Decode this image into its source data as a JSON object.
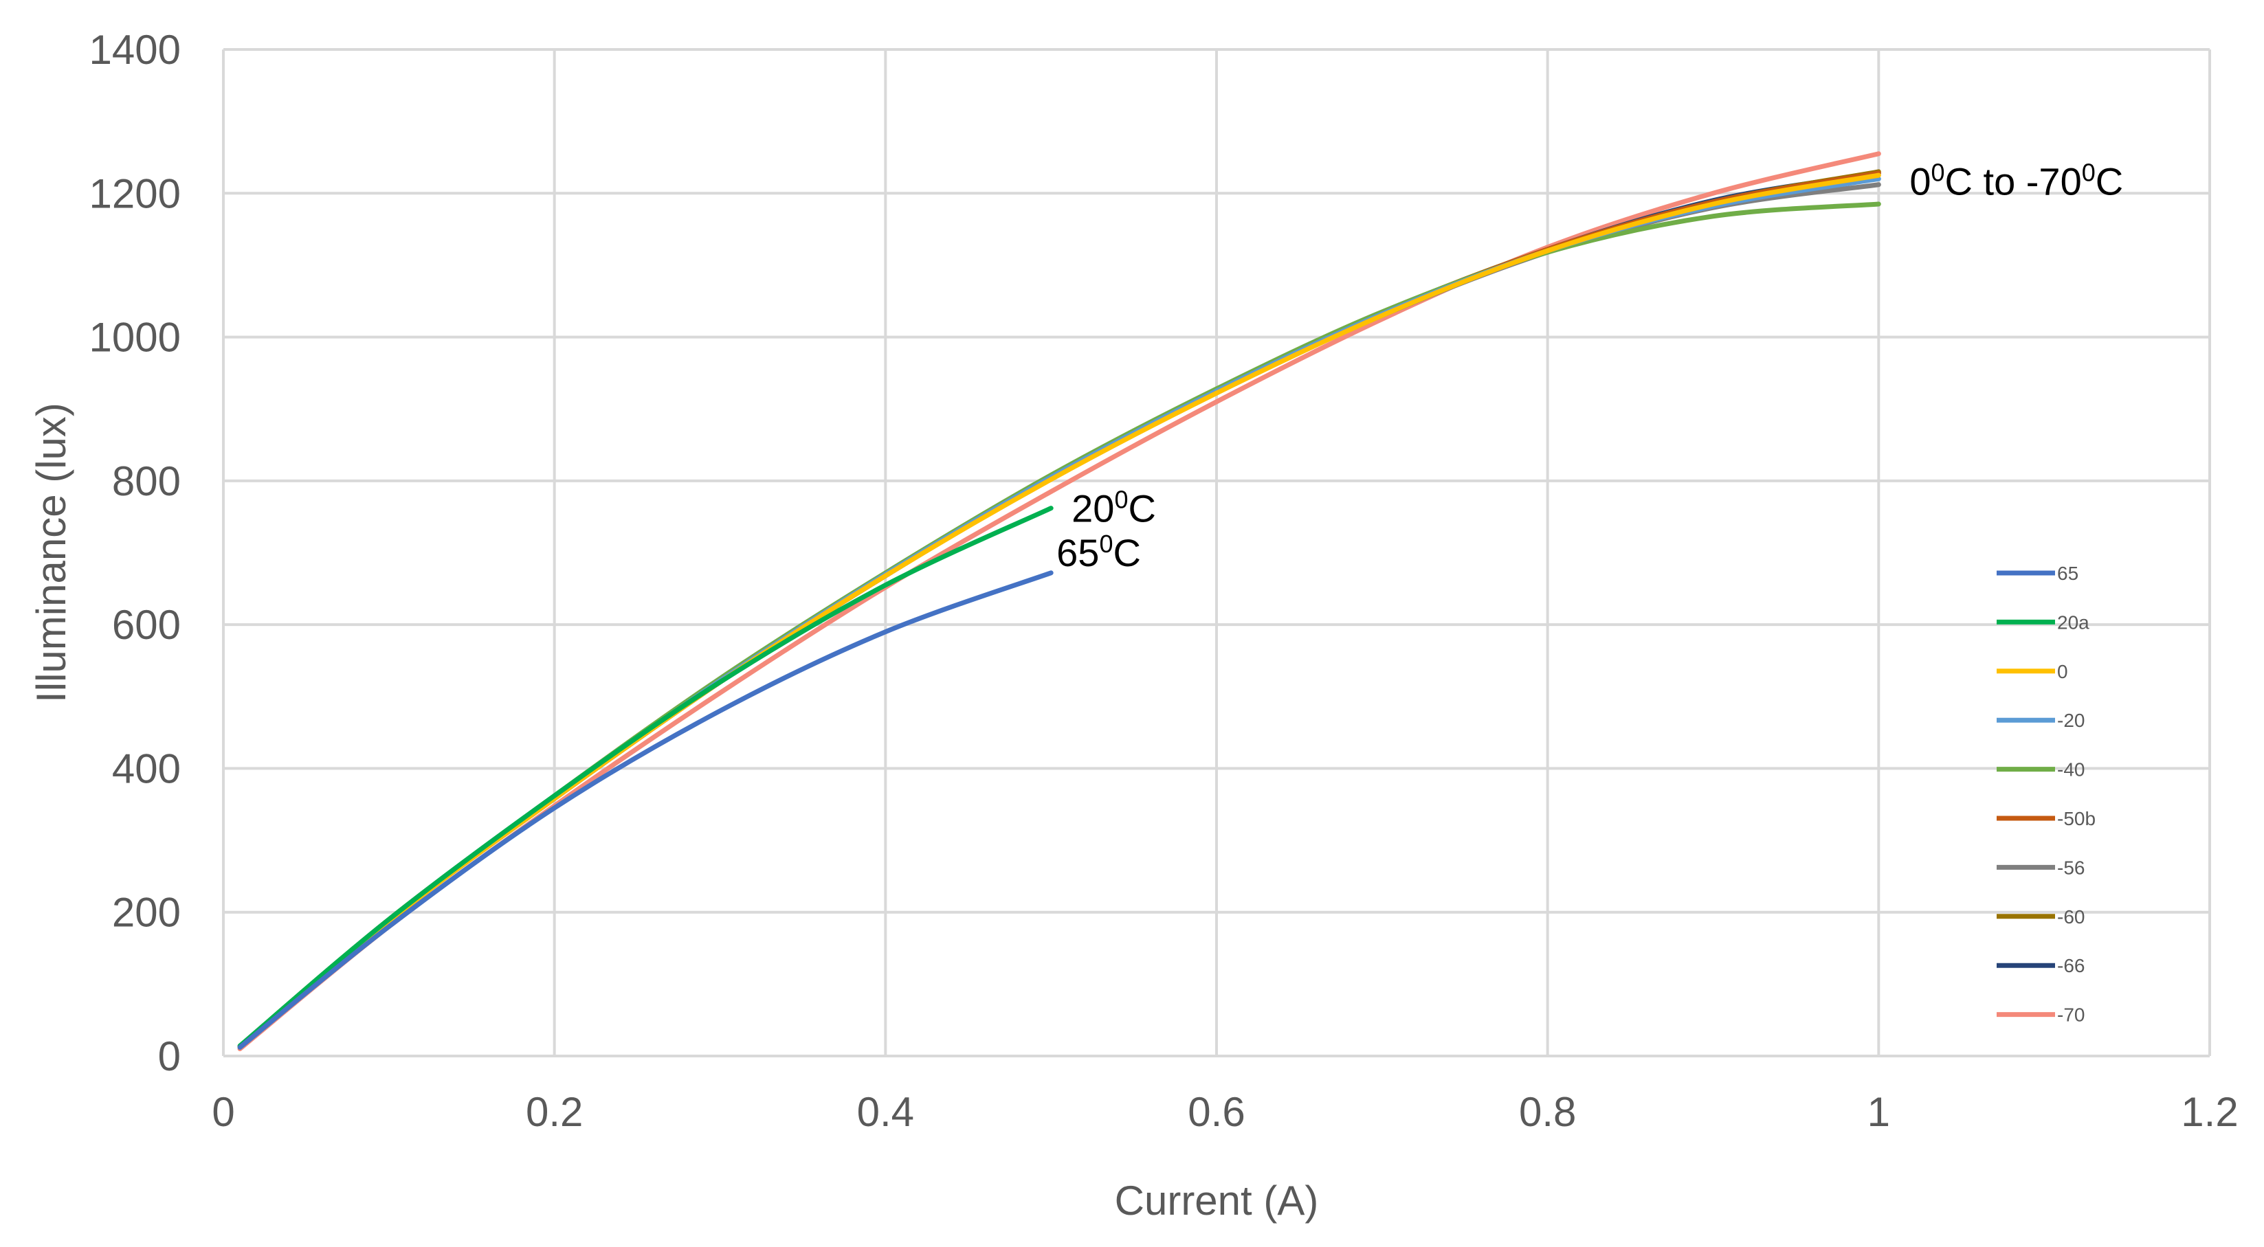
{
  "chart_data": {
    "type": "line",
    "title": "",
    "xlabel": "Current (A)",
    "ylabel": "Illuminance (lux)",
    "xlim": [
      0,
      1.2
    ],
    "ylim": [
      0,
      1400
    ],
    "x_ticks": [
      "0",
      "0.2",
      "0.4",
      "0.6",
      "0.8",
      "1",
      "1.2"
    ],
    "y_ticks": [
      "0",
      "200",
      "400",
      "600",
      "800",
      "1000",
      "1200",
      "1400"
    ],
    "grid": true,
    "legend_position": "right",
    "series": [
      {
        "name": "65",
        "color": "#4472c4",
        "x": [
          0.01,
          0.1,
          0.2,
          0.3,
          0.4,
          0.5
        ],
        "y": [
          12,
          180,
          345,
          480,
          590,
          672
        ]
      },
      {
        "name": "20a",
        "color": "#00b050",
        "x": [
          0.01,
          0.1,
          0.2,
          0.3,
          0.4,
          0.5
        ],
        "y": [
          14,
          190,
          362,
          520,
          655,
          762
        ]
      },
      {
        "name": "0",
        "color": "#ffc000",
        "x": [
          0.01,
          0.1,
          0.2,
          0.3,
          0.4,
          0.5,
          0.6,
          0.7,
          0.8,
          0.9,
          1.0
        ],
        "y": [
          13,
          188,
          358,
          520,
          668,
          802,
          922,
          1030,
          1120,
          1185,
          1225
        ]
      },
      {
        "name": "-20",
        "color": "#5b9bd5",
        "x": [
          0.01,
          0.1,
          0.2,
          0.3,
          0.4,
          0.5,
          0.6,
          0.7,
          0.8,
          0.9,
          1.0
        ],
        "y": [
          13,
          189,
          360,
          522,
          670,
          805,
          925,
          1032,
          1120,
          1182,
          1220
        ]
      },
      {
        "name": "-40",
        "color": "#70ad47",
        "x": [
          0.01,
          0.1,
          0.2,
          0.3,
          0.4,
          0.5,
          0.6,
          0.7,
          0.8,
          0.9,
          1.0
        ],
        "y": [
          14,
          190,
          362,
          525,
          672,
          808,
          928,
          1035,
          1118,
          1168,
          1185
        ]
      },
      {
        "name": "-50b",
        "color": "#c55a11",
        "x": [
          0.01,
          0.1,
          0.2,
          0.3,
          0.4,
          0.5,
          0.6,
          0.7,
          0.8,
          0.9,
          1.0
        ],
        "y": [
          13,
          188,
          358,
          520,
          668,
          803,
          923,
          1032,
          1122,
          1188,
          1228
        ]
      },
      {
        "name": "-56",
        "color": "#7f7f7f",
        "x": [
          0.01,
          0.1,
          0.2,
          0.3,
          0.4,
          0.5,
          0.6,
          0.7,
          0.8,
          0.9,
          1.0
        ],
        "y": [
          13,
          188,
          358,
          520,
          668,
          803,
          923,
          1030,
          1118,
          1180,
          1212
        ]
      },
      {
        "name": "-60",
        "color": "#997300",
        "x": [
          0.01,
          0.1,
          0.2,
          0.3,
          0.4,
          0.5,
          0.6,
          0.7,
          0.8,
          0.9,
          1.0
        ],
        "y": [
          13,
          189,
          360,
          522,
          670,
          806,
          926,
          1034,
          1122,
          1188,
          1230
        ]
      },
      {
        "name": "-66",
        "color": "#264478",
        "x": [
          0.01,
          0.1,
          0.2,
          0.3,
          0.4,
          0.5,
          0.6,
          0.7,
          0.8,
          0.9,
          1.0
        ],
        "y": [
          13,
          188,
          358,
          520,
          668,
          803,
          923,
          1032,
          1122,
          1190,
          1228
        ]
      },
      {
        "name": "-70",
        "color": "#f4897a",
        "x": [
          0.01,
          0.1,
          0.2,
          0.3,
          0.4,
          0.5,
          0.6,
          0.7,
          0.8,
          0.9,
          1.0
        ],
        "y": [
          10,
          180,
          348,
          505,
          652,
          785,
          910,
          1025,
          1125,
          1200,
          1255
        ]
      }
    ],
    "annotations": [
      {
        "series": "20a",
        "base": "20",
        "sup": "0",
        "tail": "C"
      },
      {
        "series": "65",
        "base": "65",
        "sup": "0",
        "tail": "C"
      },
      {
        "series": "-70",
        "base": "0",
        "sup": "0",
        "tail": "C to -70",
        "sup2": "0",
        "tail2": "C"
      }
    ]
  }
}
